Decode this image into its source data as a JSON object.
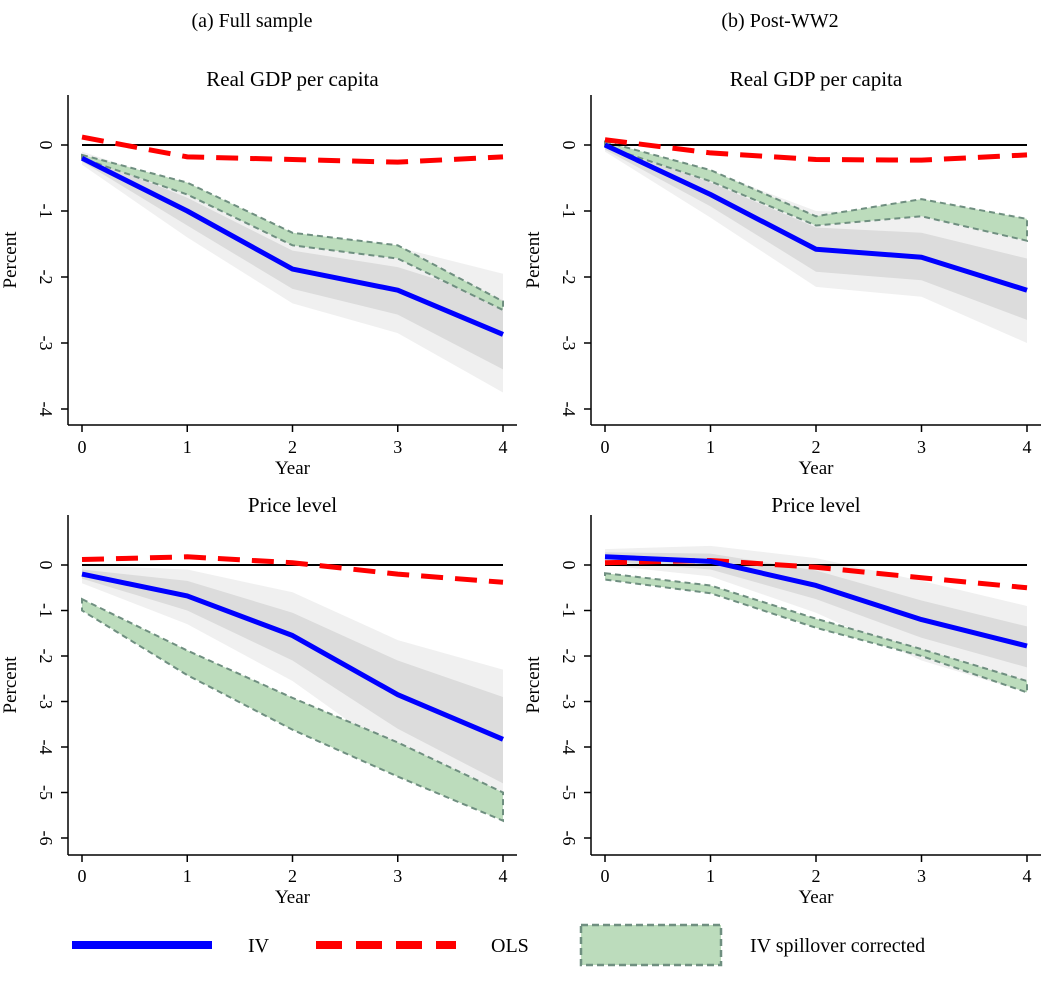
{
  "columns": [
    {
      "title": "(a) Full sample"
    },
    {
      "title": "(b) Post-WW2"
    }
  ],
  "legend": {
    "items": [
      {
        "label": "IV",
        "color": "#0000ff",
        "style": "solid"
      },
      {
        "label": "OLS",
        "color": "#ff0000",
        "style": "dashed"
      },
      {
        "label": "IV spillover corrected",
        "color": "#bcdcbc",
        "style": "band"
      }
    ]
  },
  "chart_data": [
    {
      "type": "line",
      "title": "Real GDP per capita",
      "xlabel": "Year",
      "ylabel": "Percent",
      "x": [
        0,
        1,
        2,
        3,
        4
      ],
      "xlim": [
        0,
        4
      ],
      "ylim": [
        -4,
        0
      ],
      "yticks": [
        0,
        -1,
        -2,
        -3,
        -4
      ],
      "series": [
        {
          "name": "IV",
          "values": [
            -0.2,
            -1.0,
            -1.88,
            -2.2,
            -2.87
          ]
        },
        {
          "name": "OLS",
          "values": [
            0.12,
            -0.18,
            -0.22,
            -0.26,
            -0.18
          ]
        }
      ],
      "bands": [
        {
          "lower": [
            -0.3,
            -1.4,
            -2.4,
            -2.85,
            -3.75
          ],
          "upper": [
            -0.1,
            -0.62,
            -1.38,
            -1.55,
            -1.95
          ]
        },
        {
          "lower": [
            -0.25,
            -1.22,
            -2.18,
            -2.57,
            -3.4
          ],
          "upper": [
            -0.15,
            -0.8,
            -1.6,
            -1.85,
            -2.35
          ]
        }
      ],
      "corrected": {
        "lower": [
          -0.2,
          -0.75,
          -1.52,
          -1.72,
          -2.5
        ],
        "upper": [
          -0.15,
          -0.57,
          -1.33,
          -1.52,
          -2.37
        ]
      }
    },
    {
      "type": "line",
      "title": "Real GDP per capita",
      "xlabel": "Year",
      "ylabel": "Percent",
      "x": [
        0,
        1,
        2,
        3,
        4
      ],
      "xlim": [
        0,
        4
      ],
      "ylim": [
        -4,
        0
      ],
      "yticks": [
        0,
        -1,
        -2,
        -3,
        -4
      ],
      "series": [
        {
          "name": "IV",
          "values": [
            0.0,
            -0.75,
            -1.58,
            -1.7,
            -2.2
          ]
        },
        {
          "name": "OLS",
          "values": [
            0.08,
            -0.12,
            -0.22,
            -0.23,
            -0.15
          ]
        }
      ],
      "bands": [
        {
          "lower": [
            -0.1,
            -1.1,
            -2.15,
            -2.3,
            -3.0
          ],
          "upper": [
            0.05,
            -0.4,
            -1.0,
            -1.05,
            -1.45
          ]
        },
        {
          "lower": [
            -0.07,
            -0.93,
            -1.92,
            -2.05,
            -2.65
          ],
          "upper": [
            0.03,
            -0.57,
            -1.25,
            -1.33,
            -1.72
          ]
        }
      ],
      "corrected": {
        "lower": [
          -0.02,
          -0.55,
          -1.22,
          -1.08,
          -1.45
        ],
        "upper": [
          0.05,
          -0.38,
          -1.08,
          -0.82,
          -1.12
        ]
      }
    },
    {
      "type": "line",
      "title": "Price level",
      "xlabel": "Year",
      "ylabel": "Percent",
      "x": [
        0,
        1,
        2,
        3,
        4
      ],
      "xlim": [
        0,
        4
      ],
      "ylim": [
        -6,
        0
      ],
      "yticks": [
        0,
        -1,
        -2,
        -3,
        -4,
        -5,
        -6
      ],
      "series": [
        {
          "name": "IV",
          "values": [
            -0.2,
            -0.68,
            -1.55,
            -2.85,
            -3.83
          ]
        },
        {
          "name": "OLS",
          "values": [
            0.12,
            0.18,
            0.05,
            -0.2,
            -0.38
          ]
        }
      ],
      "bands": [
        {
          "lower": [
            -0.4,
            -1.3,
            -2.55,
            -4.2,
            -5.6
          ],
          "upper": [
            0.0,
            -0.1,
            -0.6,
            -1.65,
            -2.3
          ]
        },
        {
          "lower": [
            -0.3,
            -1.0,
            -2.1,
            -3.6,
            -4.8
          ],
          "upper": [
            -0.1,
            -0.35,
            -1.05,
            -2.1,
            -2.9
          ]
        }
      ],
      "corrected": {
        "lower": [
          -1.0,
          -2.42,
          -3.62,
          -4.65,
          -5.62
        ],
        "upper": [
          -0.75,
          -1.88,
          -2.92,
          -3.9,
          -5.0
        ]
      }
    },
    {
      "type": "line",
      "title": "Price level",
      "xlabel": "Year",
      "ylabel": "Percent",
      "x": [
        0,
        1,
        2,
        3,
        4
      ],
      "xlim": [
        0,
        4
      ],
      "ylim": [
        -6,
        0
      ],
      "yticks": [
        0,
        -1,
        -2,
        -3,
        -4,
        -5,
        -6
      ],
      "series": [
        {
          "name": "IV",
          "values": [
            0.18,
            0.08,
            -0.45,
            -1.2,
            -1.78
          ]
        },
        {
          "name": "OLS",
          "values": [
            0.05,
            0.1,
            -0.05,
            -0.28,
            -0.5
          ]
        }
      ],
      "bands": [
        {
          "lower": [
            0.0,
            -0.25,
            -1.05,
            -2.1,
            -2.8
          ],
          "upper": [
            0.35,
            0.42,
            0.15,
            -0.35,
            -0.9
          ]
        },
        {
          "lower": [
            0.08,
            -0.1,
            -0.75,
            -1.6,
            -2.25
          ],
          "upper": [
            0.28,
            0.25,
            -0.12,
            -0.78,
            -1.35
          ]
        }
      ],
      "corrected": {
        "lower": [
          -0.32,
          -0.62,
          -1.38,
          -2.0,
          -2.8
        ],
        "upper": [
          -0.18,
          -0.45,
          -1.18,
          -1.85,
          -2.55
        ]
      }
    }
  ]
}
